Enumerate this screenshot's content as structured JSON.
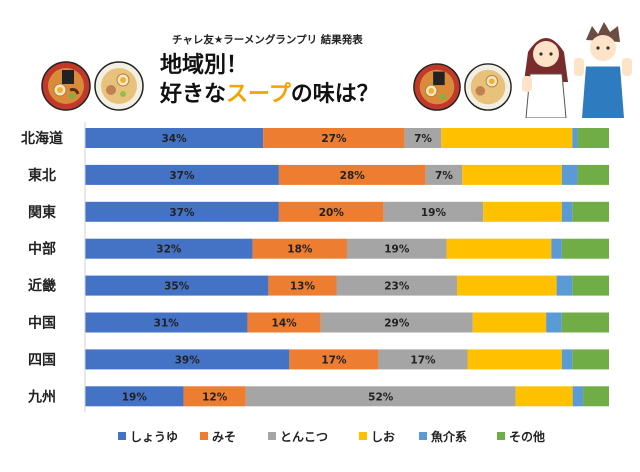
{
  "header": {
    "subtitle": "チャレ友★ラーメングランプリ 結果発表",
    "title_line1": "地域別！",
    "title_line2_pre": "好きな",
    "title_line2_highlight": "スープ",
    "title_line2_post": "の味は？"
  },
  "chart_data": {
    "type": "bar",
    "orientation": "horizontal",
    "stacked": true,
    "normalized": true,
    "title": "地域別！好きなスープの味は？",
    "categories": [
      "北海道",
      "東北",
      "関東",
      "中部",
      "近畿",
      "中国",
      "四国",
      "九州"
    ],
    "series": [
      {
        "name": "しょうゆ",
        "color": "#4472c4",
        "values": [
          34,
          37,
          37,
          32,
          35,
          31,
          39,
          19
        ],
        "labels": [
          "34%",
          "37%",
          "37%",
          "32%",
          "35%",
          "31%",
          "39%",
          "19%"
        ]
      },
      {
        "name": "みそ",
        "color": "#ed7d31",
        "values": [
          27,
          28,
          20,
          18,
          13,
          14,
          17,
          12
        ],
        "labels": [
          "27%",
          "28%",
          "20%",
          "18%",
          "13%",
          "14%",
          "17%",
          "12%"
        ]
      },
      {
        "name": "とんこつ",
        "color": "#a5a5a5",
        "values": [
          7,
          7,
          19,
          19,
          23,
          29,
          17,
          52
        ],
        "labels": [
          "7%",
          "7%",
          "19%",
          "19%",
          "23%",
          "29%",
          "17%",
          "52%"
        ]
      },
      {
        "name": "しお",
        "color": "#ffc000",
        "values": [
          25,
          19,
          15,
          20,
          19,
          14,
          18,
          11
        ],
        "labels": [
          "",
          "",
          "",
          "",
          "",
          "",
          "",
          ""
        ]
      },
      {
        "name": "魚介系",
        "color": "#5b9bd5",
        "values": [
          1,
          3,
          2,
          2,
          3,
          3,
          2,
          2
        ],
        "labels": [
          "",
          "",
          "",
          "",
          "",
          "",
          "",
          ""
        ]
      },
      {
        "name": "その他",
        "color": "#70ad47",
        "values": [
          6,
          6,
          7,
          9,
          7,
          9,
          7,
          5
        ],
        "labels": [
          "",
          "",
          "",
          "",
          "",
          "",
          "",
          ""
        ]
      }
    ],
    "xlim": [
      0,
      100
    ],
    "legend_position": "bottom"
  }
}
